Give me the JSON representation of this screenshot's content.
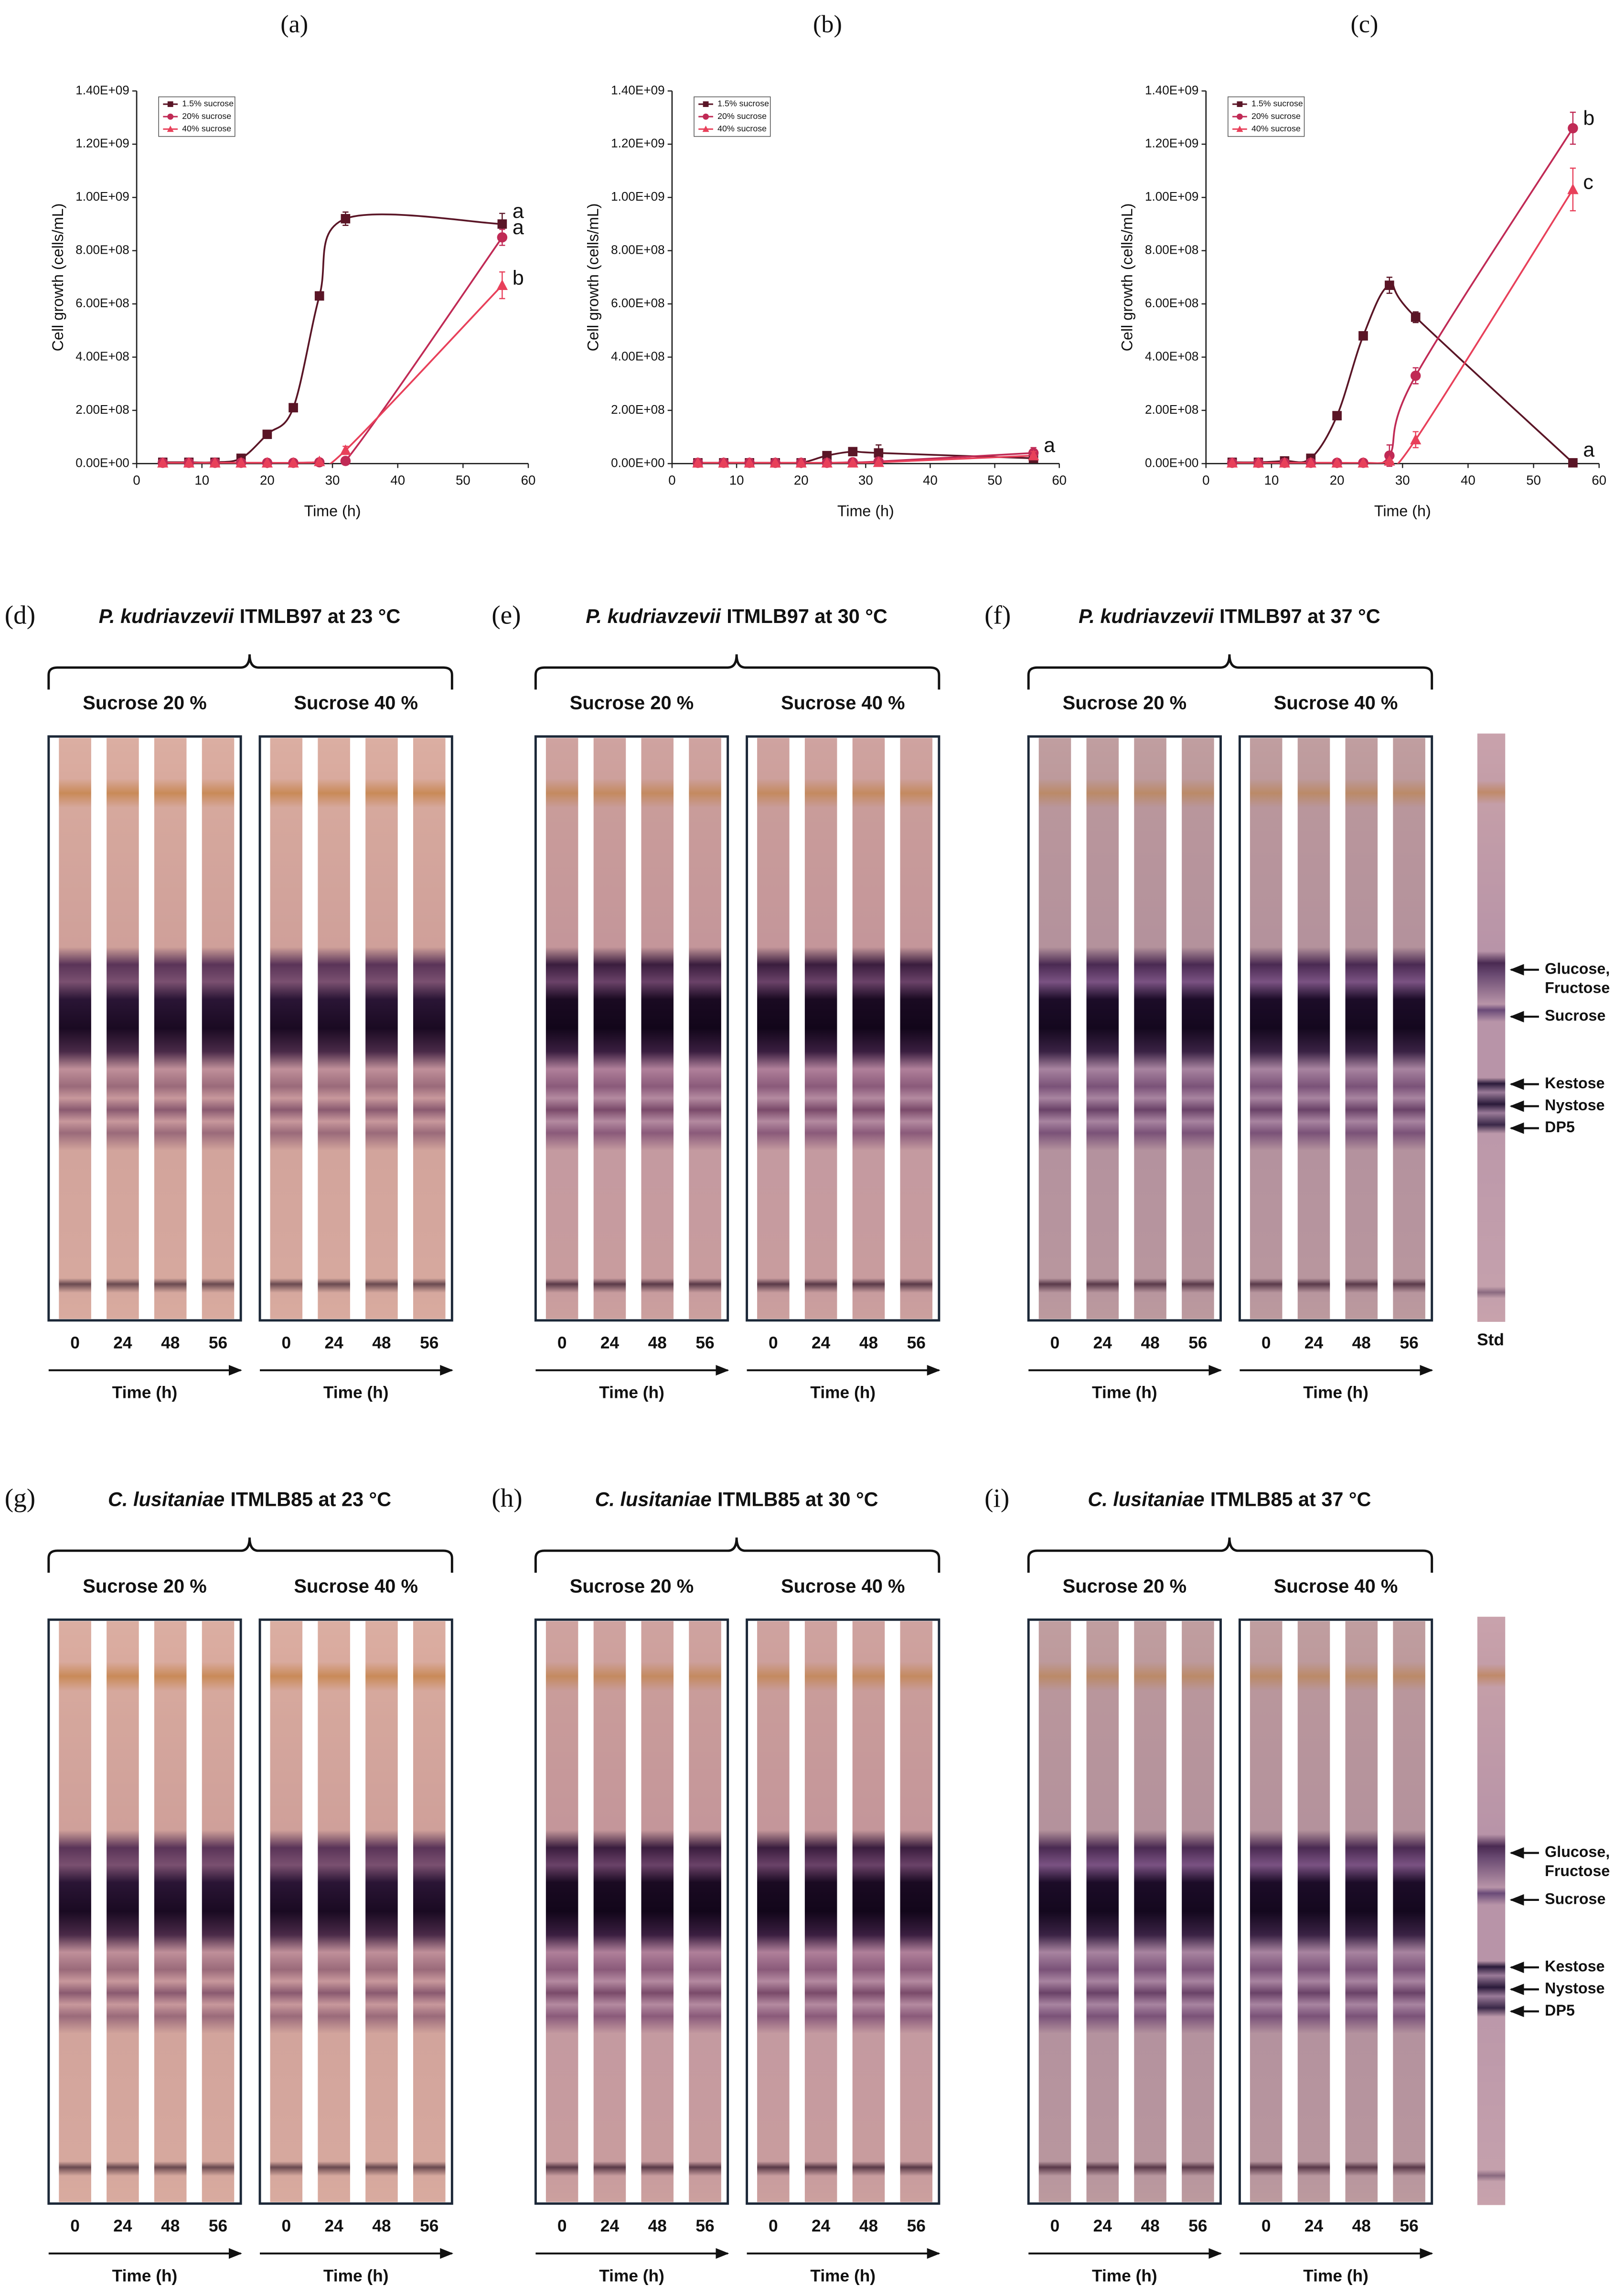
{
  "chart_data": [
    {
      "type": "line",
      "title": "(a)",
      "x_label": "Time (h)",
      "y_label": "Cell growth (cells/mL)",
      "legend": "upper left",
      "xlim": [
        0,
        60
      ],
      "xticks": [
        0,
        10,
        20,
        30,
        40,
        50,
        60
      ],
      "ylim": [
        0,
        1400000000
      ],
      "yticks": [
        {
          "value": 0,
          "label": "0.00E+00"
        },
        {
          "value": 200000000,
          "label": "2.00E+08"
        },
        {
          "value": 400000000,
          "label": "4.00E+08"
        },
        {
          "value": 600000000,
          "label": "6.00E+08"
        },
        {
          "value": 800000000,
          "label": "8.00E+08"
        },
        {
          "value": 1000000000,
          "label": "1.00E+09"
        },
        {
          "value": 1200000000,
          "label": "1.20E+09"
        },
        {
          "value": 1400000000,
          "label": "1.40E+09"
        }
      ],
      "x": [
        4,
        8,
        12,
        16,
        20,
        24,
        28,
        32,
        56
      ],
      "series": [
        {
          "name": "1.5% sucrose",
          "color": "#5a1526",
          "marker": "square",
          "values": [
            5000000,
            5000000,
            5000000,
            20000000,
            110000000,
            210000000,
            630000000,
            920000000,
            900000000
          ],
          "errors": [
            2000000,
            2000000,
            2000000,
            5000000,
            10000000,
            10000000,
            15000000,
            25000000,
            40000000
          ]
        },
        {
          "name": "20% sucrose",
          "color": "#c02a55",
          "marker": "circle",
          "values": [
            3000000,
            3000000,
            3000000,
            3000000,
            3000000,
            3000000,
            5000000,
            10000000,
            850000000
          ],
          "errors": [
            1000000,
            1000000,
            1000000,
            1000000,
            1000000,
            1000000,
            2000000,
            5000000,
            30000000
          ]
        },
        {
          "name": "40% sucrose",
          "color": "#e8405a",
          "marker": "triangle",
          "values": [
            3000000,
            3000000,
            3000000,
            3000000,
            3000000,
            3000000,
            8000000,
            50000000,
            670000000
          ],
          "errors": [
            1000000,
            1000000,
            1000000,
            1000000,
            1000000,
            1000000,
            3000000,
            15000000,
            50000000
          ]
        }
      ],
      "annotations": [
        "a",
        "a",
        "b"
      ]
    },
    {
      "type": "line",
      "title": "(b)",
      "x_label": "Time (h)",
      "y_label": "Cell growth (cells/mL)",
      "legend": "upper left",
      "xlim": [
        0,
        60
      ],
      "xticks": [
        0,
        10,
        20,
        30,
        40,
        50,
        60
      ],
      "ylim": [
        0,
        1400000000
      ],
      "yticks": [
        {
          "value": 0,
          "label": "0.00E+00"
        },
        {
          "value": 200000000,
          "label": "2.00E+08"
        },
        {
          "value": 400000000,
          "label": "4.00E+08"
        },
        {
          "value": 600000000,
          "label": "6.00E+08"
        },
        {
          "value": 800000000,
          "label": "8.00E+08"
        },
        {
          "value": 1000000000,
          "label": "1.00E+09"
        },
        {
          "value": 1200000000,
          "label": "1.20E+09"
        },
        {
          "value": 1400000000,
          "label": "1.40E+09"
        }
      ],
      "x": [
        4,
        8,
        12,
        16,
        20,
        24,
        28,
        32,
        56
      ],
      "series": [
        {
          "name": "1.5% sucrose",
          "color": "#5a1526",
          "marker": "square",
          "values": [
            3000000,
            3000000,
            3000000,
            3000000,
            3000000,
            30000000,
            45000000,
            40000000,
            20000000
          ],
          "errors": [
            1000000,
            1000000,
            1000000,
            1000000,
            1000000,
            10000000,
            10000000,
            30000000,
            10000000
          ]
        },
        {
          "name": "20% sucrose",
          "color": "#c02a55",
          "marker": "circle",
          "values": [
            3000000,
            3000000,
            3000000,
            3000000,
            3000000,
            3000000,
            5000000,
            8000000,
            40000000
          ],
          "errors": [
            1000000,
            1000000,
            1000000,
            1000000,
            1000000,
            1000000,
            2000000,
            3000000,
            20000000
          ]
        },
        {
          "name": "40% sucrose",
          "color": "#e8405a",
          "marker": "triangle",
          "values": [
            3000000,
            3000000,
            3000000,
            3000000,
            3000000,
            3000000,
            3000000,
            5000000,
            30000000
          ],
          "errors": [
            1000000,
            1000000,
            1000000,
            1000000,
            1000000,
            1000000,
            1000000,
            2000000,
            15000000
          ]
        }
      ],
      "annotations": [
        "a"
      ]
    },
    {
      "type": "line",
      "title": "(c)",
      "x_label": "Time (h)",
      "y_label": "Cell growth (cells/mL)",
      "legend": "upper left",
      "xlim": [
        0,
        60
      ],
      "xticks": [
        0,
        10,
        20,
        30,
        40,
        50,
        60
      ],
      "ylim": [
        0,
        1400000000
      ],
      "yticks": [
        {
          "value": 0,
          "label": "0.00E+00"
        },
        {
          "value": 200000000,
          "label": "2.00E+08"
        },
        {
          "value": 400000000,
          "label": "4.00E+08"
        },
        {
          "value": 600000000,
          "label": "6.00E+08"
        },
        {
          "value": 800000000,
          "label": "8.00E+08"
        },
        {
          "value": 1000000000,
          "label": "1.00E+09"
        },
        {
          "value": 1200000000,
          "label": "1.20E+09"
        },
        {
          "value": 1400000000,
          "label": "1.40E+09"
        }
      ],
      "x": [
        4,
        8,
        12,
        16,
        20,
        24,
        28,
        32,
        56
      ],
      "series": [
        {
          "name": "1.5% sucrose",
          "color": "#5a1526",
          "marker": "square",
          "values": [
            5000000,
            5000000,
            10000000,
            20000000,
            180000000,
            480000000,
            670000000,
            550000000,
            3000000
          ],
          "errors": [
            2000000,
            2000000,
            2000000,
            5000000,
            10000000,
            15000000,
            30000000,
            20000000,
            3000000
          ]
        },
        {
          "name": "20% sucrose",
          "color": "#c02a55",
          "marker": "circle",
          "values": [
            3000000,
            3000000,
            3000000,
            3000000,
            3000000,
            3000000,
            30000000,
            330000000,
            1260000000
          ],
          "errors": [
            1000000,
            1000000,
            1000000,
            1000000,
            1000000,
            1000000,
            40000000,
            30000000,
            60000000
          ]
        },
        {
          "name": "40% sucrose",
          "color": "#e8405a",
          "marker": "triangle",
          "values": [
            3000000,
            3000000,
            3000000,
            3000000,
            3000000,
            3000000,
            10000000,
            90000000,
            1030000000
          ],
          "errors": [
            1000000,
            1000000,
            1000000,
            1000000,
            1000000,
            1000000,
            5000000,
            30000000,
            80000000
          ]
        }
      ],
      "annotations": [
        "a",
        "b",
        "c"
      ]
    }
  ],
  "tlc_panels": [
    {
      "label": "(d)",
      "species": "P. kudriavzevii",
      "strain": "ITMLB97 at 23 °C",
      "groups": [
        {
          "name": "Sucrose 20 %",
          "lanes": [
            "0",
            "24",
            "48",
            "56"
          ],
          "axis": "Time (h)"
        },
        {
          "name": "Sucrose 40 %",
          "lanes": [
            "0",
            "24",
            "48",
            "56"
          ],
          "axis": "Time (h)"
        }
      ]
    },
    {
      "label": "(e)",
      "species": "P. kudriavzevii",
      "strain": "ITMLB97 at 30 °C",
      "groups": [
        {
          "name": "Sucrose 20 %",
          "lanes": [
            "0",
            "24",
            "48",
            "56"
          ],
          "axis": "Time (h)"
        },
        {
          "name": "Sucrose 40 %",
          "lanes": [
            "0",
            "24",
            "48",
            "56"
          ],
          "axis": "Time (h)"
        }
      ]
    },
    {
      "label": "(f)",
      "species": "P. kudriavzevii",
      "strain": "ITMLB97 at 37 °C",
      "groups": [
        {
          "name": "Sucrose 20 %",
          "lanes": [
            "0",
            "24",
            "48",
            "56"
          ],
          "axis": "Time (h)"
        },
        {
          "name": "Sucrose 40 %",
          "lanes": [
            "0",
            "24",
            "48",
            "56"
          ],
          "axis": "Time (h)"
        }
      ]
    },
    {
      "label": "(g)",
      "species": "C. lusitaniae",
      "strain": "ITMLB85 at 23 °C",
      "groups": [
        {
          "name": "Sucrose 20 %",
          "lanes": [
            "0",
            "24",
            "48",
            "56"
          ],
          "axis": "Time (h)"
        },
        {
          "name": "Sucrose 40 %",
          "lanes": [
            "0",
            "24",
            "48",
            "56"
          ],
          "axis": "Time (h)"
        }
      ]
    },
    {
      "label": "(h)",
      "species": "C. lusitaniae",
      "strain": "ITMLB85 at 30 °C",
      "groups": [
        {
          "name": "Sucrose 20 %",
          "lanes": [
            "0",
            "24",
            "48",
            "56"
          ],
          "axis": "Time (h)"
        },
        {
          "name": "Sucrose 40 %",
          "lanes": [
            "0",
            "24",
            "48",
            "56"
          ],
          "axis": "Time (h)"
        }
      ]
    },
    {
      "label": "(i)",
      "species": "C. lusitaniae",
      "strain": "ITMLB85 at 37 °C",
      "groups": [
        {
          "name": "Sucrose 20 %",
          "lanes": [
            "0",
            "24",
            "48",
            "56"
          ],
          "axis": "Time (h)"
        },
        {
          "name": "Sucrose 40 %",
          "lanes": [
            "0",
            "24",
            "48",
            "56"
          ],
          "axis": "Time (h)"
        }
      ]
    }
  ],
  "standards": [
    {
      "label": "Std",
      "bands": [
        {
          "lines": [
            "Glucose,",
            "Fructose"
          ]
        },
        {
          "lines": [
            "Sucrose"
          ]
        },
        {
          "lines": [
            "Kestose"
          ]
        },
        {
          "lines": [
            "Nystose"
          ]
        },
        {
          "lines": [
            "DP5"
          ]
        }
      ]
    },
    {
      "bands": [
        {
          "lines": [
            "Glucose,",
            "Fructose"
          ]
        },
        {
          "lines": [
            "Sucrose"
          ]
        },
        {
          "lines": [
            "Kestose"
          ]
        },
        {
          "lines": [
            "Nystose"
          ]
        },
        {
          "lines": [
            "DP5"
          ]
        }
      ]
    }
  ]
}
